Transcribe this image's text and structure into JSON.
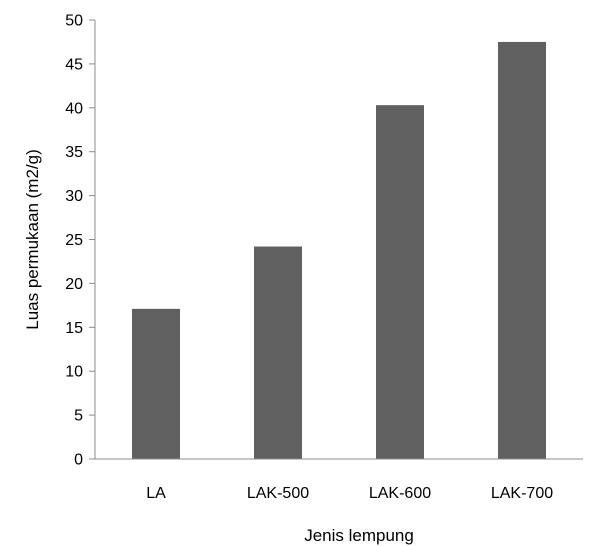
{
  "chart_data": {
    "type": "bar",
    "title": "",
    "xlabel": "Jenis lempung",
    "ylabel": "Luas permukaan (m2/g)",
    "categories": [
      "LA",
      "LAK-500",
      "LAK-600",
      "LAK-700"
    ],
    "values": [
      17.1,
      24.2,
      40.3,
      47.5
    ],
    "ylim": [
      0,
      50
    ],
    "yticks": [
      "0",
      "5",
      "10",
      "15",
      "20",
      "25",
      "30",
      "35",
      "40",
      "45",
      "50"
    ],
    "grid": false,
    "legend": "none",
    "bar_color": "#606060",
    "axis_color": "#8c8c8c"
  }
}
